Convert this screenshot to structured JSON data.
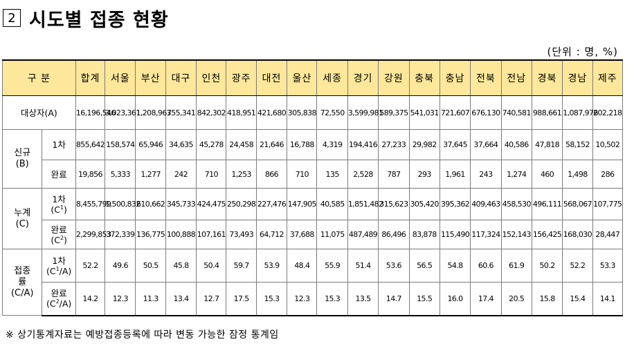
{
  "title": {
    "number": "2",
    "text": "시도별 접종 현황"
  },
  "unit": "(단위 : 명, %)",
  "header": {
    "label": "구 분",
    "regions": [
      "합계",
      "서울",
      "부산",
      "대구",
      "인천",
      "광주",
      "대전",
      "울산",
      "세종",
      "경기",
      "강원",
      "충북",
      "충남",
      "전북",
      "전남",
      "경북",
      "경남",
      "제주"
    ]
  },
  "rows": {
    "target": {
      "label": "대상자(A)",
      "values": [
        "16,196,546",
        "3,023,361",
        "1,208,963",
        "755,341",
        "842,302",
        "418,951",
        "421,680",
        "305,838",
        "72,550",
        "3,599,981",
        "589,375",
        "541,031",
        "721,607",
        "676,130",
        "740,581",
        "988,661",
        "1,087,976",
        "202,218"
      ]
    },
    "new": {
      "group_line1": "신규",
      "group_line2": "(B)",
      "first": {
        "label": "1차",
        "values": [
          "855,642",
          "158,574",
          "65,946",
          "34,635",
          "45,278",
          "24,458",
          "21,646",
          "16,788",
          "4,319",
          "194,416",
          "27,233",
          "29,982",
          "37,645",
          "37,664",
          "40,586",
          "47,818",
          "58,152",
          "10,502"
        ]
      },
      "complete": {
        "label": "완료",
        "values": [
          "19,856",
          "5,333",
          "1,277",
          "242",
          "710",
          "1,253",
          "866",
          "710",
          "135",
          "2,528",
          "787",
          "293",
          "1,961",
          "243",
          "1,274",
          "460",
          "1,498",
          "286"
        ]
      }
    },
    "cumulative": {
      "group_line1": "누계",
      "group_line2": "(C)",
      "first": {
        "label_line1": "1차",
        "label_line2_pre": "(C",
        "label_sup": "1",
        "label_line2_post": ")",
        "values": [
          "8,455,799",
          "1,500,832",
          "610,662",
          "345,733",
          "424,475",
          "250,298",
          "227,476",
          "147,905",
          "40,585",
          "1,851,482",
          "315,623",
          "305,420",
          "395,362",
          "409,463",
          "458,530",
          "496,111",
          "568,067",
          "107,775"
        ]
      },
      "complete": {
        "label_line1": "완료",
        "label_line2_pre": "(C",
        "label_sup": "2",
        "label_line2_post": ")",
        "values": [
          "2,299,853",
          "372,339",
          "136,775",
          "100,888",
          "107,161",
          "73,493",
          "64,712",
          "37,688",
          "11,075",
          "487,489",
          "86,496",
          "83,878",
          "115,490",
          "117,324",
          "152,143",
          "156,425",
          "168,030",
          "28,447"
        ]
      }
    },
    "rate": {
      "group_line1": "접종",
      "group_line2": "률",
      "group_line3": "(C/A)",
      "first": {
        "label_line1": "1차",
        "label_line2_pre": "(C",
        "label_sup": "1",
        "label_line2_post": "/A)",
        "values": [
          "52.2",
          "49.6",
          "50.5",
          "45.8",
          "50.4",
          "59.7",
          "53.9",
          "48.4",
          "55.9",
          "51.4",
          "53.6",
          "56.5",
          "54.8",
          "60.6",
          "61.9",
          "50.2",
          "52.2",
          "53.3"
        ]
      },
      "complete": {
        "label_line1": "완료",
        "label_line2_pre": "(C",
        "label_sup": "2",
        "label_line2_post": "/A)",
        "values": [
          "14.2",
          "12.3",
          "11.3",
          "13.4",
          "12.7",
          "17.5",
          "15.3",
          "12.3",
          "15.3",
          "13.5",
          "14.7",
          "15.5",
          "16.0",
          "17.4",
          "20.5",
          "15.8",
          "15.4",
          "14.1"
        ]
      }
    }
  },
  "footnote": "※ 상기통계자료는 예방접종등록에 따라 변동 가능한 잠정 통계임"
}
